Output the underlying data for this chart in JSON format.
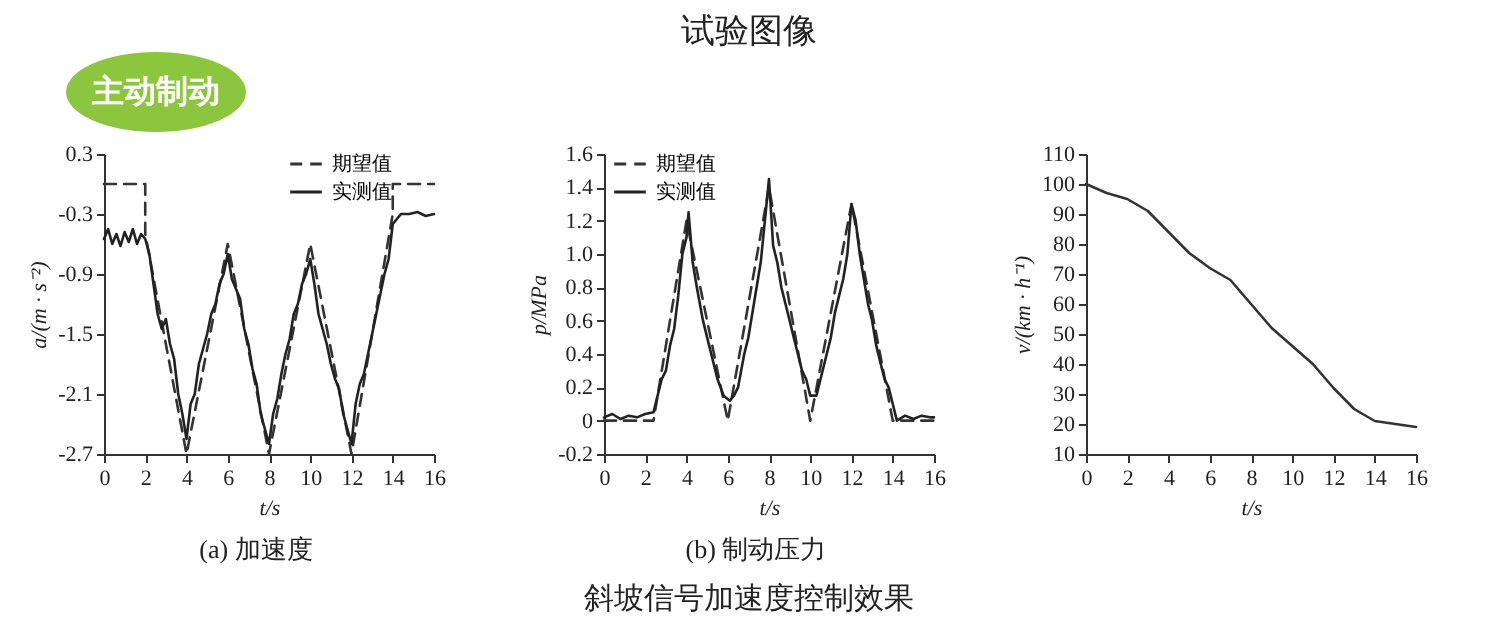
{
  "chart_data": [
    {
      "type": "line",
      "subtitle": "(a) 加速度",
      "annotations": [
        "主动制动"
      ],
      "xlabel": "t/s",
      "ylabel": "a/(m · s⁻²)",
      "xlim": [
        0,
        16
      ],
      "xticks": [
        0,
        2,
        4,
        6,
        8,
        10,
        12,
        14,
        16
      ],
      "ylim": [
        -2.7,
        0.3
      ],
      "yticks": [
        -2.7,
        -2.1,
        -1.5,
        -0.9,
        -0.3,
        0.3
      ],
      "legend": "top right",
      "series": [
        {
          "name": "期望值",
          "color": "#333333",
          "line_style": "dashed",
          "x": [
            0,
            2,
            2,
            4,
            6,
            8,
            10,
            12,
            14,
            14,
            16
          ],
          "values": [
            0,
            0,
            -0.5,
            -2.7,
            -0.6,
            -2.7,
            -0.6,
            -2.7,
            -0.3,
            0,
            0
          ]
        },
        {
          "name": "实测值",
          "color": "#222222",
          "line_style": "solid",
          "x": [
            0,
            0.2,
            0.4,
            0.6,
            0.8,
            1.0,
            1.2,
            1.4,
            1.6,
            1.8,
            2.0,
            2.2,
            2.4,
            2.6,
            2.8,
            3.0,
            3.2,
            3.4,
            3.6,
            3.8,
            4.0,
            4.2,
            4.4,
            4.6,
            4.8,
            5.0,
            5.2,
            5.4,
            5.6,
            5.8,
            6.0,
            6.2,
            6.4,
            6.6,
            6.8,
            7.0,
            7.2,
            7.4,
            7.6,
            7.8,
            8.0,
            8.2,
            8.4,
            8.6,
            8.8,
            9.0,
            9.2,
            9.4,
            9.6,
            9.8,
            10.0,
            10.2,
            10.4,
            10.6,
            10.8,
            11.0,
            11.2,
            11.4,
            11.6,
            11.8,
            12.0,
            12.2,
            12.4,
            12.6,
            12.8,
            13.0,
            13.2,
            13.4,
            13.6,
            13.8,
            14.0,
            14.2,
            14.4,
            14.8,
            15.2,
            15.6,
            16
          ],
          "values": [
            -0.55,
            -0.45,
            -0.6,
            -0.5,
            -0.62,
            -0.48,
            -0.58,
            -0.45,
            -0.6,
            -0.5,
            -0.55,
            -0.7,
            -1.0,
            -1.3,
            -1.45,
            -1.35,
            -1.6,
            -1.75,
            -2.1,
            -2.3,
            -2.55,
            -2.2,
            -2.1,
            -1.8,
            -1.65,
            -1.5,
            -1.3,
            -1.2,
            -1.0,
            -0.9,
            -0.7,
            -0.95,
            -1.05,
            -1.15,
            -1.45,
            -1.6,
            -1.85,
            -2.0,
            -2.3,
            -2.45,
            -2.6,
            -2.3,
            -2.15,
            -1.9,
            -1.7,
            -1.55,
            -1.3,
            -1.2,
            -1.0,
            -0.9,
            -0.75,
            -1.0,
            -1.3,
            -1.45,
            -1.6,
            -1.8,
            -1.95,
            -2.05,
            -2.3,
            -2.45,
            -2.6,
            -2.2,
            -2.0,
            -1.9,
            -1.7,
            -1.5,
            -1.3,
            -1.1,
            -0.9,
            -0.75,
            -0.4,
            -0.35,
            -0.3,
            -0.3,
            -0.28,
            -0.32,
            -0.3
          ]
        }
      ]
    },
    {
      "type": "line",
      "title": "试验图像",
      "subtitle": "(b) 制动压力",
      "annotations": [
        "斜坡信号加速度控制效果"
      ],
      "xlabel": "t/s",
      "ylabel": "p/MPa",
      "xlim": [
        0,
        16
      ],
      "xticks": [
        0,
        2,
        4,
        6,
        8,
        10,
        12,
        14,
        16
      ],
      "ylim": [
        -0.2,
        1.6
      ],
      "yticks": [
        -0.2,
        {
          "value": 0,
          "label": "0"
        },
        0.2,
        0.4,
        0.6,
        0.8,
        {
          "value": 1,
          "label": "1.0"
        },
        1.2,
        1.4,
        1.6
      ],
      "legend": "top left",
      "series": [
        {
          "name": "期望值",
          "color": "#333333",
          "line_style": "dashed",
          "x": [
            0,
            2.4,
            4,
            6,
            8,
            10,
            12,
            14,
            16
          ],
          "values": [
            0,
            0,
            1.2,
            0,
            1.4,
            0,
            1.3,
            0,
            0
          ]
        },
        {
          "name": "实测值",
          "color": "#222222",
          "line_style": "solid",
          "x": [
            0,
            0.4,
            0.8,
            1.2,
            1.6,
            2.0,
            2.4,
            2.6,
            2.8,
            3.0,
            3.2,
            3.4,
            3.6,
            3.8,
            4.0,
            4.1,
            4.3,
            4.5,
            4.8,
            5.0,
            5.2,
            5.5,
            5.8,
            6.1,
            6.3,
            6.5,
            6.8,
            7.0,
            7.2,
            7.4,
            7.6,
            7.8,
            8.0,
            8.2,
            8.4,
            8.6,
            8.8,
            9.0,
            9.2,
            9.4,
            9.6,
            9.8,
            10.0,
            10.3,
            10.5,
            10.8,
            11.0,
            11.2,
            11.4,
            11.6,
            11.8,
            12.0,
            12.2,
            12.4,
            12.6,
            12.8,
            13.0,
            13.2,
            13.4,
            13.6,
            13.8,
            14.0,
            14.2,
            14.6,
            15.0,
            15.4,
            15.8,
            16
          ],
          "values": [
            0.02,
            0.04,
            0.01,
            0.03,
            0.02,
            0.04,
            0.05,
            0.15,
            0.25,
            0.3,
            0.45,
            0.55,
            0.75,
            1.0,
            1.1,
            1.25,
            0.95,
            0.8,
            0.6,
            0.5,
            0.4,
            0.25,
            0.15,
            0.12,
            0.15,
            0.2,
            0.4,
            0.5,
            0.65,
            0.8,
            0.95,
            1.2,
            1.45,
            1.05,
            0.95,
            0.8,
            0.7,
            0.6,
            0.5,
            0.4,
            0.3,
            0.25,
            0.15,
            0.15,
            0.25,
            0.4,
            0.5,
            0.65,
            0.75,
            0.85,
            1.0,
            1.3,
            1.2,
            1.0,
            0.85,
            0.7,
            0.6,
            0.45,
            0.35,
            0.25,
            0.2,
            0.1,
            0.0,
            0.03,
            0.01,
            0.03,
            0.02,
            0.02
          ]
        }
      ]
    },
    {
      "type": "line",
      "xlabel": "t/s",
      "ylabel": "v/(km · h⁻¹)",
      "xlim": [
        0,
        16
      ],
      "xticks": [
        0,
        2,
        4,
        6,
        8,
        10,
        12,
        14,
        16
      ],
      "ylim": [
        10,
        110
      ],
      "yticks": [
        10,
        20,
        30,
        40,
        50,
        60,
        70,
        80,
        90,
        100,
        110
      ],
      "series": [
        {
          "color": "#333333",
          "x": [
            0,
            1,
            2,
            3,
            4,
            5,
            6,
            7,
            8,
            9,
            10,
            11,
            12,
            13,
            14,
            15,
            16
          ],
          "values": [
            100,
            97,
            95,
            91,
            84,
            77,
            72,
            68,
            60,
            52,
            46,
            40,
            32,
            25,
            21,
            20,
            19
          ]
        }
      ]
    }
  ]
}
